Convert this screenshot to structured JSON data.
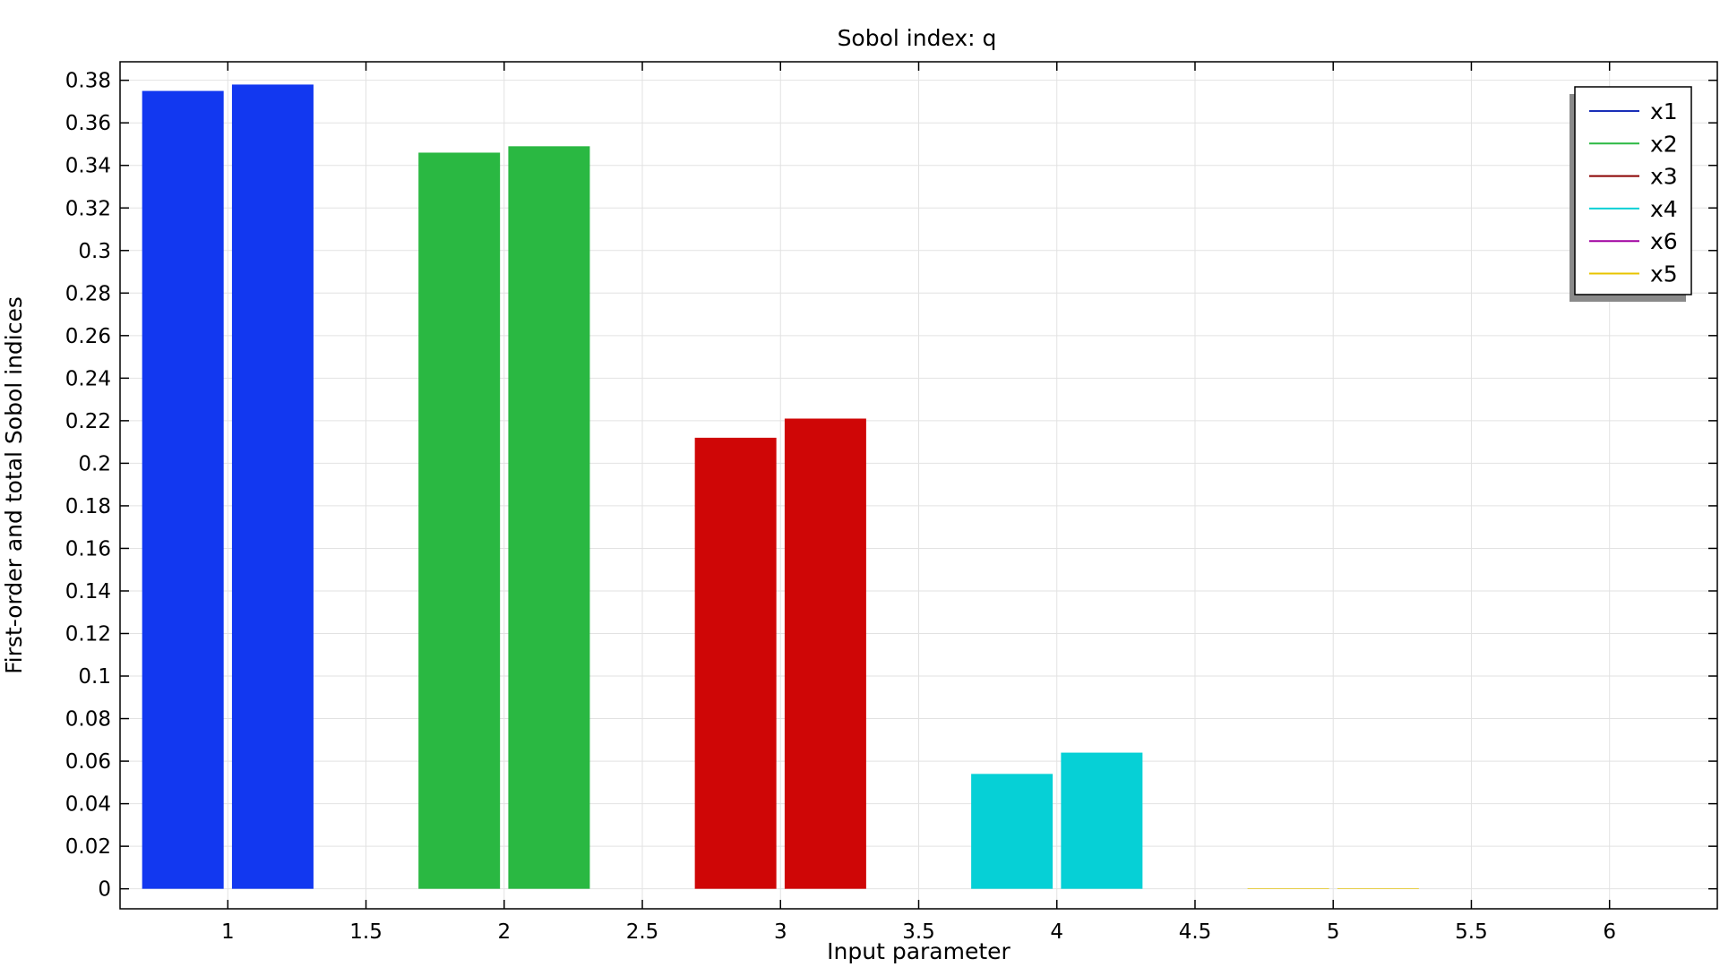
{
  "chart_data": {
    "type": "bar",
    "title": "Sobol index: q",
    "xlabel": "Input parameter",
    "ylabel": "First-order and total Sobol indices",
    "xlim": [
      0.61,
      6.39
    ],
    "ylim": [
      -0.0094,
      0.3887
    ],
    "x_ticks": [
      "1",
      "1.5",
      "2",
      "2.5",
      "3",
      "3.5",
      "4",
      "4.5",
      "5",
      "5.5",
      "6"
    ],
    "y_ticks": [
      "0",
      "0.02",
      "0.04",
      "0.06",
      "0.08",
      "0.1",
      "0.12",
      "0.14",
      "0.16",
      "0.18",
      "0.2",
      "0.22",
      "0.24",
      "0.26",
      "0.28",
      "0.3",
      "0.32",
      "0.34",
      "0.36",
      "0.38"
    ],
    "grid": true,
    "legend_position": "top-right",
    "series": [
      {
        "name": "x1",
        "color": "#1238f0",
        "line_color": "#1a2fb8",
        "x": 1,
        "values": [
          0.375,
          0.378
        ]
      },
      {
        "name": "x2",
        "color": "#2ab842",
        "line_color": "#2ab842",
        "x": 2,
        "values": [
          0.346,
          0.349
        ]
      },
      {
        "name": "x3",
        "color": "#cf0606",
        "line_color": "#8a0000",
        "x": 3,
        "values": [
          0.212,
          0.221
        ]
      },
      {
        "name": "x4",
        "color": "#06d0d6",
        "line_color": "#06d0d6",
        "x": 4,
        "values": [
          0.054,
          0.064
        ]
      },
      {
        "name": "x6",
        "color": "#c000c0",
        "line_color": "#a000a0",
        "x": 6,
        "values": [
          0.0,
          0.0
        ]
      },
      {
        "name": "x5",
        "color": "#e8c400",
        "line_color": "#e8c400",
        "x": 5,
        "values": [
          0.0003,
          0.0003
        ]
      }
    ]
  }
}
